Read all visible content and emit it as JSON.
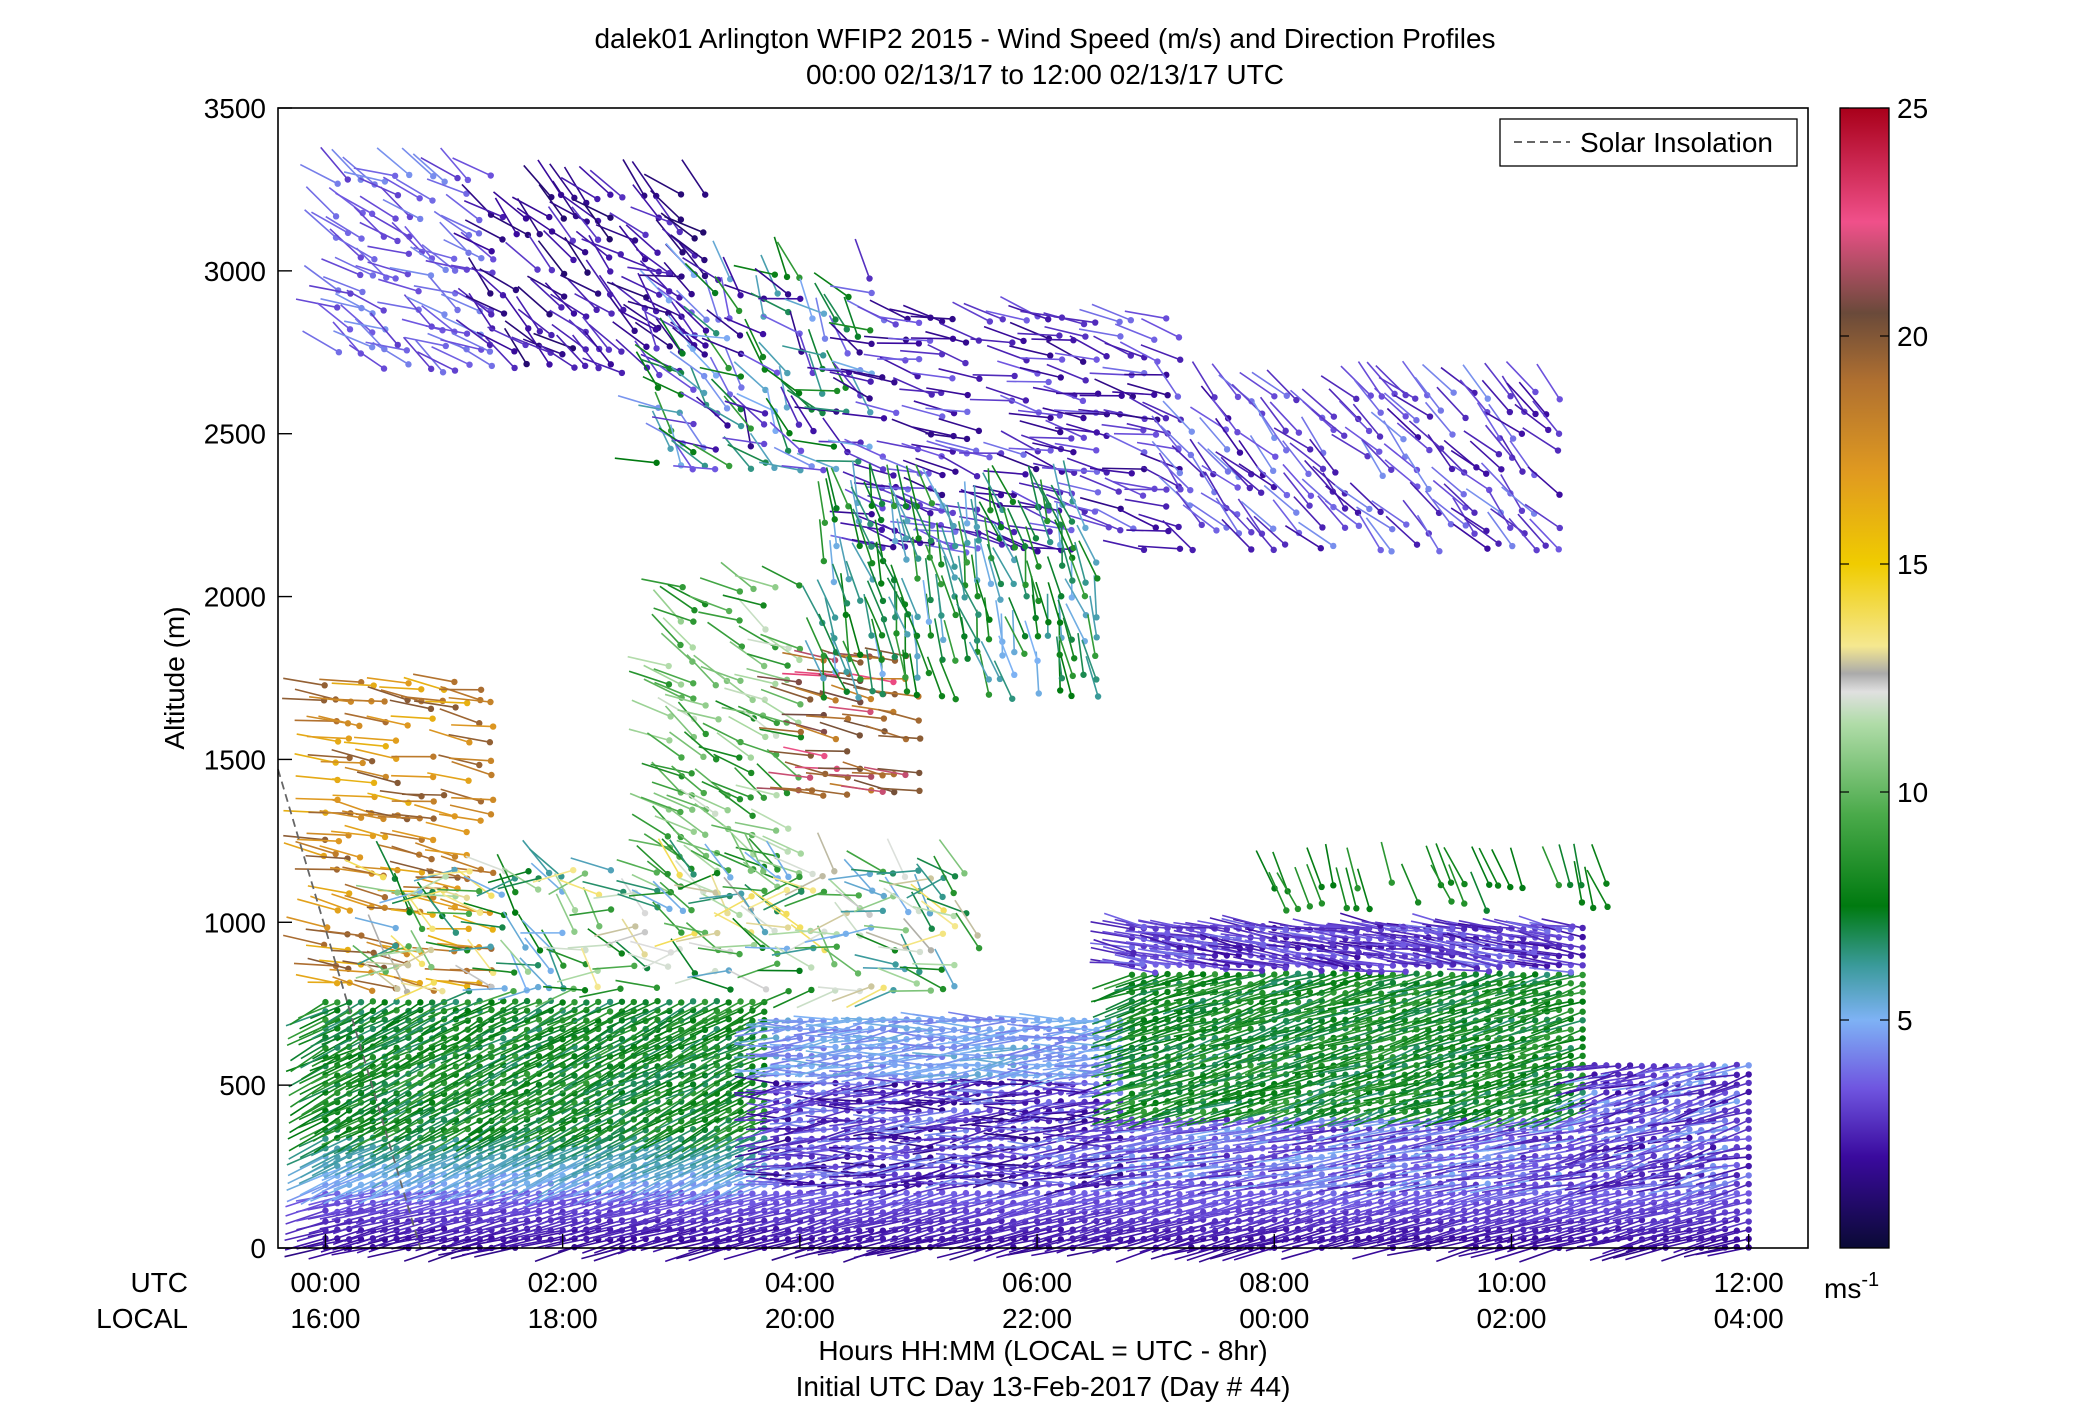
{
  "chart_data": {
    "type": "wind-barb-profile",
    "title": "dalek01 Arlington WFIP2 2015 - Wind Speed (m/s) and Direction Profiles",
    "subtitle": "00:00 02/13/17 to 12:00 02/13/17  UTC",
    "ylabel": "Altitude (m)",
    "xlabel": "Hours HH:MM  (LOCAL = UTC - 8hr)",
    "xlabel2": "Initial UTC Day 13-Feb-2017 (Day # 44)",
    "row_label_utc": "UTC",
    "row_label_local": "LOCAL",
    "x_range_hours": [
      -0.4,
      12.5
    ],
    "ylim": [
      0,
      3500
    ],
    "y_ticks": [
      0,
      500,
      1000,
      1500,
      2000,
      2500,
      3000,
      3500
    ],
    "y_tick_labels": [
      "0",
      "500",
      "1000",
      "1500",
      "2000",
      "2500",
      "3000",
      "3500"
    ],
    "x_ticks_hours": [
      0,
      2,
      4,
      6,
      8,
      10,
      12
    ],
    "x_ticks_utc": [
      "00:00",
      "02:00",
      "04:00",
      "06:00",
      "08:00",
      "10:00",
      "12:00"
    ],
    "x_ticks_local": [
      "16:00",
      "18:00",
      "20:00",
      "22:00",
      "00:00",
      "02:00",
      "04:00"
    ],
    "legend": {
      "label": "Solar Insolation",
      "placement": "top-right",
      "line_color": "#666666"
    },
    "solar_insolation": {
      "x_hours": [
        -0.4,
        0.8
      ],
      "y_m": [
        1470,
        0
      ]
    },
    "colorbar": {
      "min": 0,
      "max": 25,
      "ticks": [
        5,
        10,
        15,
        20,
        25
      ],
      "tick_labels": [
        "5",
        "10",
        "15",
        "20",
        "25"
      ],
      "unit": "ms",
      "unit_exp": "-1",
      "stops": [
        {
          "v": 0.0,
          "c": "#0a0a35"
        },
        {
          "v": 2.0,
          "c": "#3a0a9e"
        },
        {
          "v": 3.5,
          "c": "#6f55e0"
        },
        {
          "v": 5.0,
          "c": "#7eb2f5"
        },
        {
          "v": 6.2,
          "c": "#3a9a9a"
        },
        {
          "v": 7.5,
          "c": "#007a10"
        },
        {
          "v": 9.5,
          "c": "#4aaa4a"
        },
        {
          "v": 11.5,
          "c": "#b0dca8"
        },
        {
          "v": 12.2,
          "c": "#e0e0e0"
        },
        {
          "v": 12.6,
          "c": "#aaaaaa"
        },
        {
          "v": 13.2,
          "c": "#f5e890"
        },
        {
          "v": 15.0,
          "c": "#f0cc00"
        },
        {
          "v": 17.0,
          "c": "#e09a20"
        },
        {
          "v": 19.0,
          "c": "#b07030"
        },
        {
          "v": 20.5,
          "c": "#6a4a3a"
        },
        {
          "v": 22.5,
          "c": "#f0508a"
        },
        {
          "v": 25.0,
          "c": "#a8001a"
        }
      ]
    },
    "series_times_hours": [
      0,
      0.1,
      0.2,
      0.3,
      0.4,
      0.5,
      0.6,
      0.7,
      0.8,
      0.9,
      1.0,
      1.1,
      1.2,
      1.3,
      1.4,
      1.5,
      1.6,
      1.7,
      1.8,
      1.9,
      2.0,
      2.1,
      2.2,
      2.3,
      2.4,
      2.5,
      2.6,
      2.7,
      2.8,
      2.9,
      3.0,
      3.1,
      3.2,
      3.3,
      3.4,
      3.5,
      3.6,
      3.7,
      3.8,
      3.9,
      4.0,
      4.1,
      4.2,
      4.3,
      4.4,
      4.5,
      4.6,
      4.7,
      4.8,
      4.9,
      5.0,
      5.1,
      5.2,
      5.3,
      5.4,
      5.5,
      5.6,
      5.7,
      5.8,
      5.9,
      6.0,
      6.1,
      6.2,
      6.3,
      6.4,
      6.5,
      6.6,
      6.7,
      6.8,
      6.9,
      7.0,
      7.1,
      7.2,
      7.3,
      7.4,
      7.5,
      7.6,
      7.7,
      7.8,
      7.9,
      8.0,
      8.1,
      8.2,
      8.3,
      8.4,
      8.5,
      8.6,
      8.7,
      8.8,
      8.9,
      9.0,
      9.1,
      9.2,
      9.3,
      9.4,
      9.5,
      9.6,
      9.7,
      9.8,
      9.9,
      10.0,
      10.1,
      10.2,
      10.3,
      10.4,
      10.5,
      10.6,
      10.7,
      10.8,
      10.9,
      11.0,
      11.1,
      11.2,
      11.3,
      11.4,
      11.5,
      11.6,
      11.7,
      11.8,
      11.9,
      12.0
    ],
    "profile_heights_m": [
      0,
      28,
      56,
      84,
      112,
      140,
      168,
      196,
      224,
      252,
      280,
      308,
      336,
      364,
      392,
      420,
      448,
      476,
      504,
      532,
      560,
      588,
      616,
      644,
      672,
      700,
      728,
      756,
      784,
      812,
      840,
      868,
      896,
      924,
      952,
      980,
      1008
    ],
    "upper_wind_regions": [
      {
        "t": [
          0.1,
          1.4
        ],
        "z": [
          2700,
          3320
        ],
        "speed": [
          3,
          4.5
        ],
        "dir_from": [
          280,
          320
        ]
      },
      {
        "t": [
          1.4,
          3.2
        ],
        "z": [
          2700,
          3250
        ],
        "speed": [
          1,
          3
        ],
        "dir_from": [
          290,
          330
        ]
      },
      {
        "t": [
          2.8,
          4.6
        ],
        "z": [
          2400,
          3000
        ],
        "speed": [
          1.5,
          9
        ],
        "dir_from": [
          270,
          350
        ]
      },
      {
        "t": [
          4.6,
          7.2
        ],
        "z": [
          2150,
          2850
        ],
        "speed": [
          1.5,
          4
        ],
        "dir_from": [
          270,
          300
        ]
      },
      {
        "t": [
          7.2,
          10.4
        ],
        "z": [
          2150,
          2650
        ],
        "speed": [
          2,
          4.5
        ],
        "dir_from": [
          300,
          330
        ]
      },
      {
        "t": [
          0.0,
          1.4
        ],
        "z": [
          800,
          1750
        ],
        "speed": [
          16,
          20
        ],
        "dir_from": [
          270,
          290
        ]
      },
      {
        "t": [
          2.9,
          4.0
        ],
        "z": [
          1100,
          2050
        ],
        "speed": [
          8,
          12
        ],
        "dir_from": [
          280,
          320
        ]
      },
      {
        "t": [
          4.0,
          5.0
        ],
        "z": [
          1400,
          1850
        ],
        "speed": [
          18,
          23
        ],
        "dir_from": [
          270,
          290
        ]
      },
      {
        "t": [
          4.2,
          6.5
        ],
        "z": [
          1700,
          2300
        ],
        "speed": [
          5,
          9
        ],
        "dir_from": [
          330,
          360
        ]
      },
      {
        "t": [
          0.5,
          5.5
        ],
        "z": [
          800,
          1200
        ],
        "speed": [
          5,
          14
        ],
        "dir_from": [
          240,
          340
        ]
      },
      {
        "t": [
          6.8,
          10.5
        ],
        "z": [
          860,
          990
        ],
        "speed": [
          2,
          4
        ],
        "dir_from": [
          270,
          290
        ]
      },
      {
        "t": [
          8.0,
          10.8
        ],
        "z": [
          1050,
          1150
        ],
        "speed": [
          7,
          9
        ],
        "dir_from": [
          330,
          350
        ]
      }
    ]
  }
}
